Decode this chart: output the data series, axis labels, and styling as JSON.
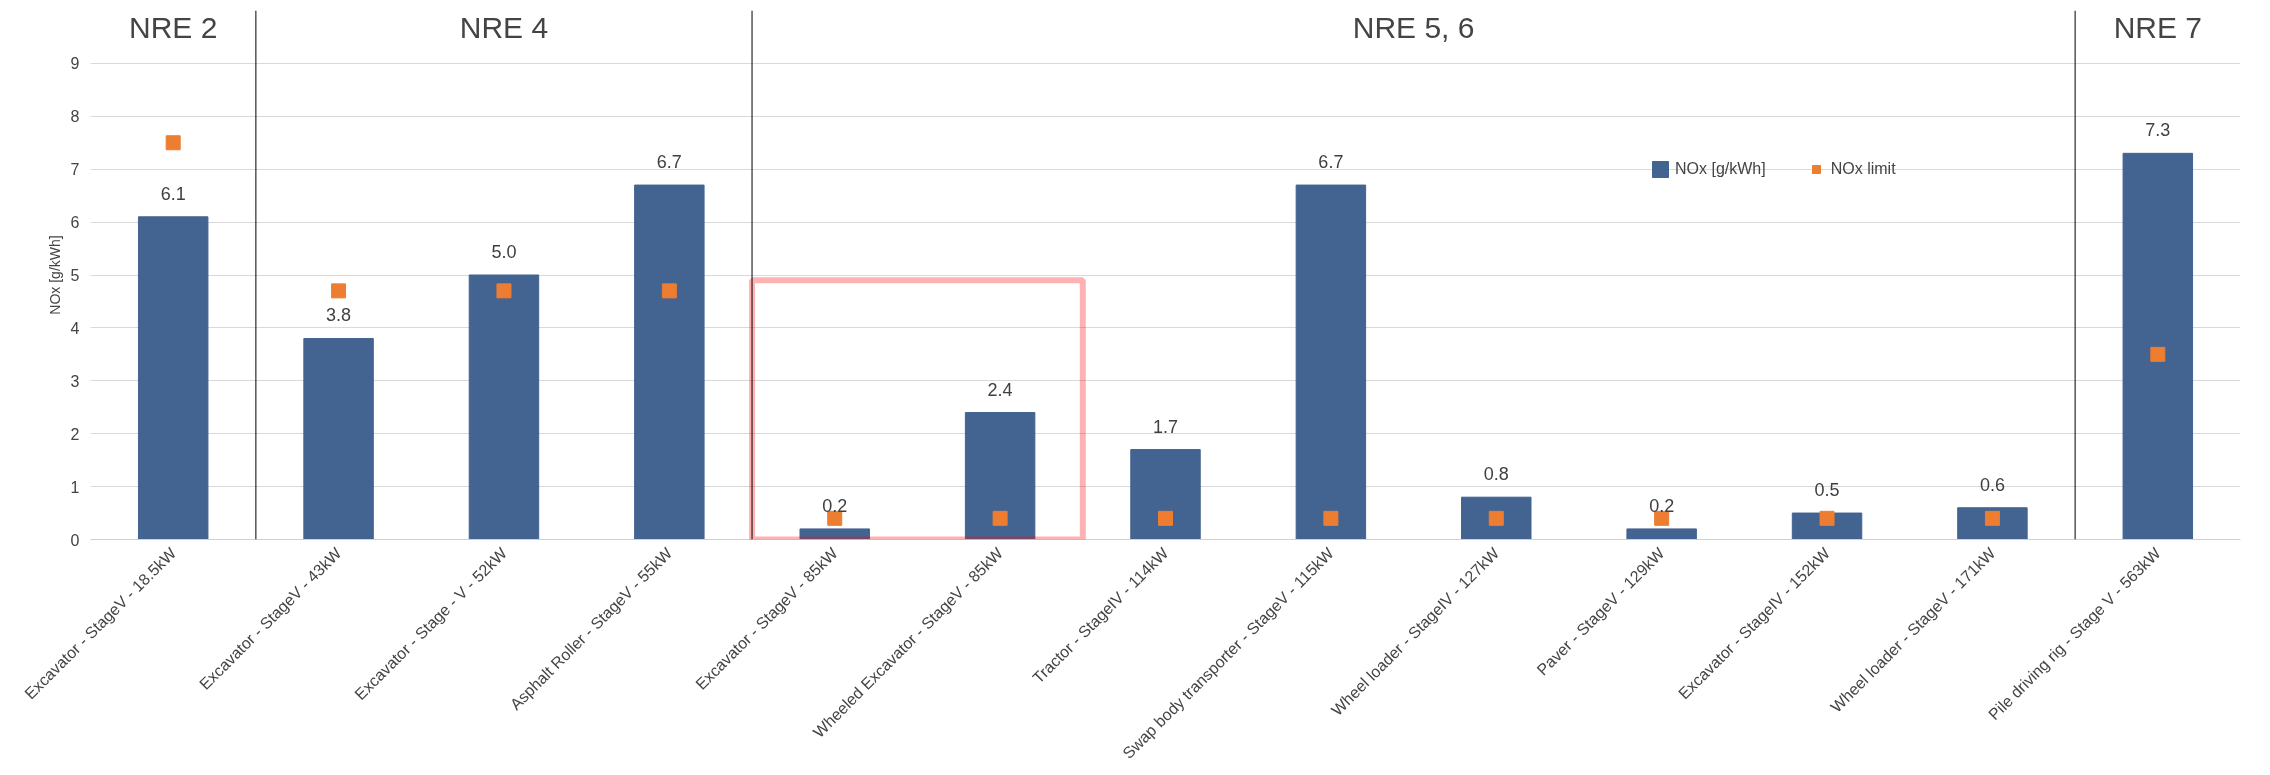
{
  "chart_data": {
    "type": "bar",
    "ylabel": "NOx [g/kWh]",
    "categories": [
      "Excavator - StageV - 18.5kW",
      "Excavator - StageV - 43kW",
      "Excavator - Stage - V - 52kW",
      "Asphalt Roller - StageV - 55kW",
      "Excavator - StageV - 85kW",
      "Wheeled Excavator - StageV - 85kW",
      "Tractor - StageIV - 114kW",
      "Swap body transporter - StageV - 115kW",
      "Wheel loader - StageIV - 127kW",
      "Paver - StageV - 129kW",
      "Excavator - StageIV - 152kW",
      "Wheel loader - StageV - 171kW",
      "Pile driving rig - Stage V - 563kW"
    ],
    "series": [
      {
        "name": "NOx [g/kWh]",
        "color": "#436391",
        "values": [
          6.1,
          3.8,
          5.0,
          6.7,
          0.2,
          2.4,
          1.7,
          6.7,
          0.8,
          0.2,
          0.5,
          0.6,
          7.3
        ],
        "value_labels": [
          "6.1",
          "3.8",
          "5.0",
          "6.7",
          "0.2",
          "2.4",
          "1.7",
          "6.7",
          "0.8",
          "0.2",
          "0.5",
          "0.6",
          "7.3"
        ]
      },
      {
        "name": "NOx limit",
        "type": "scatter",
        "color": "#ed7d31",
        "values": [
          7.5,
          4.7,
          4.7,
          4.7,
          0.4,
          0.4,
          0.4,
          0.4,
          0.4,
          0.4,
          0.4,
          0.4,
          3.5
        ]
      }
    ],
    "ylim": [
      0,
      10
    ],
    "yticks": [
      0,
      1,
      2,
      3,
      4,
      5,
      6,
      7,
      8,
      9
    ],
    "grid": "y",
    "legend": "top right",
    "marker": "square",
    "annotations": [
      "NRE 2",
      "NRE 4",
      "NRE 5, 6",
      "NRE 7"
    ]
  }
}
